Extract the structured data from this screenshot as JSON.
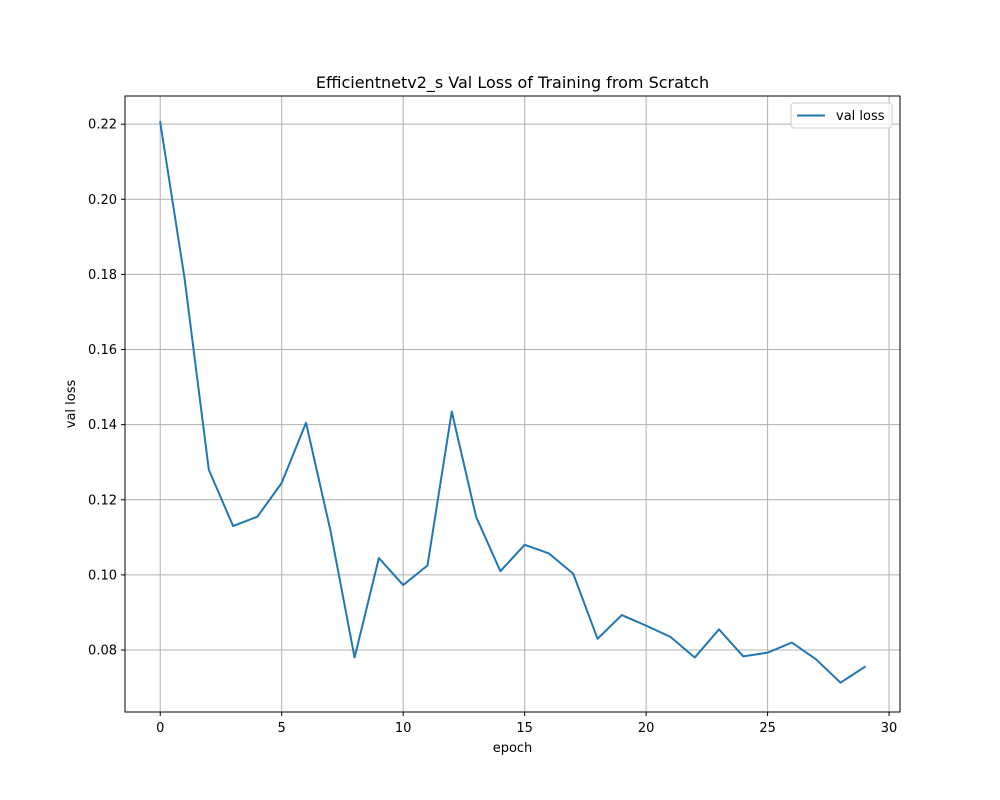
{
  "chart_data": {
    "type": "line",
    "title": "Efficientnetv2_s Val Loss of Training from Scratch",
    "xlabel": "epoch",
    "ylabel": "val loss",
    "xlim": [
      -1.45,
      30.45
    ],
    "ylim": [
      0.0635,
      0.2275
    ],
    "xticks": [
      0,
      5,
      10,
      15,
      20,
      25,
      30
    ],
    "xtick_labels": [
      "0",
      "5",
      "10",
      "15",
      "20",
      "25",
      "30"
    ],
    "yticks": [
      0.08,
      0.1,
      0.12,
      0.14,
      0.16,
      0.18,
      0.2,
      0.22
    ],
    "ytick_labels": [
      "0.08",
      "0.10",
      "0.12",
      "0.14",
      "0.16",
      "0.18",
      "0.20",
      "0.22"
    ],
    "grid": true,
    "legend_position": "top-right",
    "series": [
      {
        "name": "val loss",
        "color": "#1f77b4",
        "x": [
          0,
          1,
          2,
          3,
          4,
          5,
          6,
          7,
          8,
          9,
          10,
          11,
          12,
          13,
          14,
          15,
          16,
          17,
          18,
          19,
          20,
          21,
          22,
          23,
          24,
          25,
          26,
          27,
          28,
          29
        ],
        "y": [
          0.2205,
          0.179,
          0.128,
          0.113,
          0.1155,
          0.1245,
          0.1405,
          0.112,
          0.078,
          0.1045,
          0.0973,
          0.1025,
          0.1435,
          0.1155,
          0.101,
          0.108,
          0.1057,
          0.1003,
          0.083,
          0.0893,
          0.0865,
          0.0835,
          0.078,
          0.0855,
          0.0783,
          0.0793,
          0.082,
          0.0775,
          0.0713,
          0.0755
        ]
      }
    ]
  }
}
